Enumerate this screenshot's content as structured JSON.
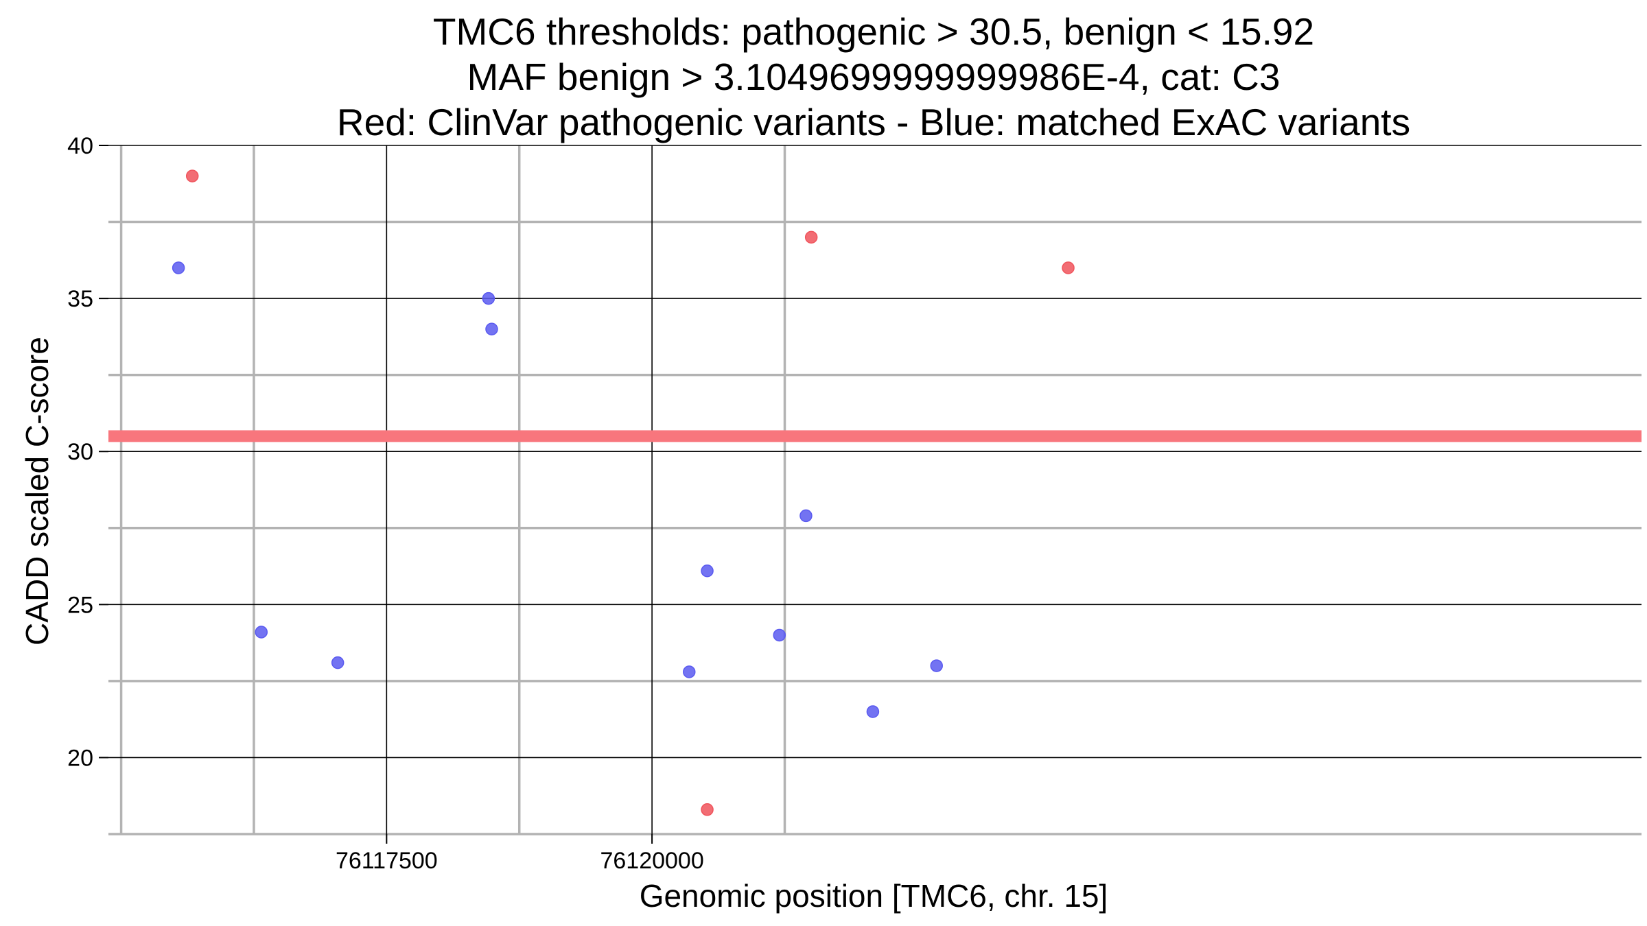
{
  "chart_data": {
    "type": "scatter",
    "title_lines": [
      "TMC6 thresholds: pathogenic > 30.5, benign < 15.92",
      "MAF benign > 3.1049699999999986E-4, cat: C3",
      "Red: ClinVar pathogenic variants - Blue: matched ExAC variants"
    ],
    "xlabel": "Genomic position [TMC6, chr. 15]",
    "ylabel": "CADD scaled C-score",
    "xlim": [
      76114880,
      76129320
    ],
    "ylim": [
      17.5,
      40
    ],
    "x_ticks": [
      76117500,
      76120000
    ],
    "x_tick_labels": [
      "76117500",
      "76120000"
    ],
    "x_minor_gridlines": [
      76115000,
      76116250,
      76118750,
      76121250
    ],
    "y_ticks": [
      20,
      25,
      30,
      35,
      40
    ],
    "y_tick_labels": [
      "20",
      "25",
      "30",
      "35",
      "40"
    ],
    "y_minor_gridlines": [
      17.5,
      22.5,
      27.5,
      32.5,
      37.5
    ],
    "threshold": {
      "name": "pathogenic threshold",
      "value": 30.5,
      "color": "#f8767d"
    },
    "series": [
      {
        "name": "ClinVar pathogenic variants",
        "color": "#f0545c",
        "points": [
          {
            "x": 76115670,
            "y": 39.0
          },
          {
            "x": 76121500,
            "y": 37.0
          },
          {
            "x": 76123920,
            "y": 36.0
          },
          {
            "x": 76120520,
            "y": 18.3
          }
        ]
      },
      {
        "name": "matched ExAC variants",
        "color": "#5a5af0",
        "points": [
          {
            "x": 76115540,
            "y": 36.0
          },
          {
            "x": 76118460,
            "y": 35.0
          },
          {
            "x": 76118490,
            "y": 34.0
          },
          {
            "x": 76116320,
            "y": 24.1
          },
          {
            "x": 76117040,
            "y": 23.1
          },
          {
            "x": 76120520,
            "y": 26.1
          },
          {
            "x": 76121450,
            "y": 27.9
          },
          {
            "x": 76120350,
            "y": 22.8
          },
          {
            "x": 76121200,
            "y": 24.0
          },
          {
            "x": 76122080,
            "y": 21.5
          },
          {
            "x": 76122680,
            "y": 23.0
          }
        ]
      }
    ]
  }
}
